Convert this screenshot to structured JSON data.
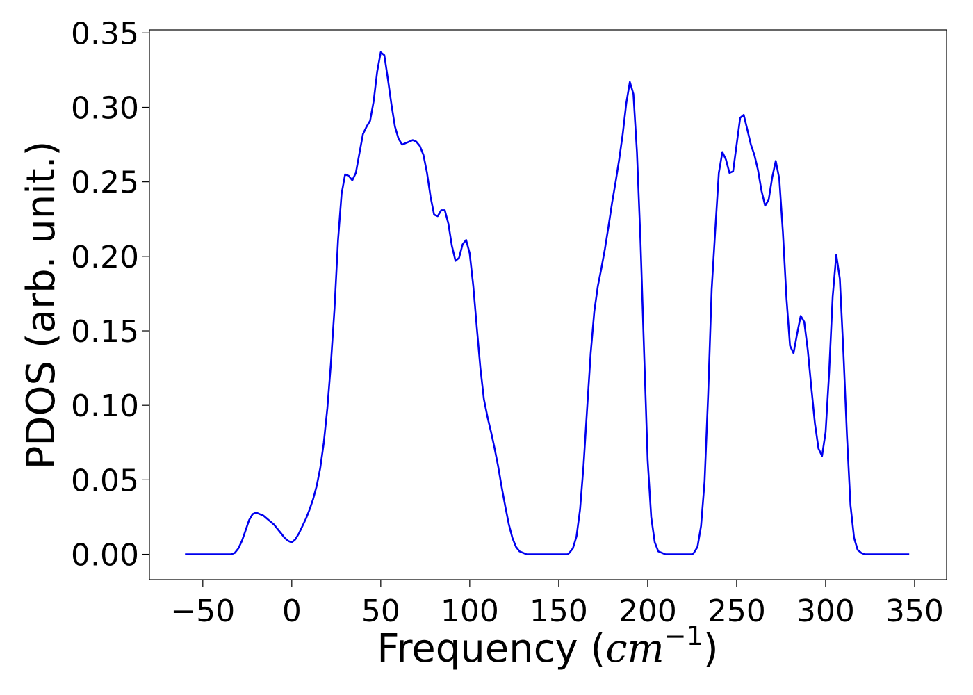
{
  "chart_data": {
    "type": "line",
    "title": "",
    "xlabel_main": "Frequency (",
    "xlabel_unit": "cm",
    "xlabel_exp": "−1",
    "xlabel_close": ")",
    "ylabel": "PDOS (arb. unit.)",
    "xlim": [
      -80,
      368
    ],
    "ylim": [
      -0.017,
      0.352
    ],
    "xticks": [
      -50,
      0,
      50,
      100,
      150,
      200,
      250,
      300,
      350
    ],
    "xtick_labels": [
      "−50",
      "0",
      "50",
      "100",
      "150",
      "200",
      "250",
      "300",
      "350"
    ],
    "yticks": [
      0.0,
      0.05,
      0.1,
      0.15,
      0.2,
      0.25,
      0.3,
      0.35
    ],
    "ytick_labels": [
      "0.00",
      "0.05",
      "0.10",
      "0.15",
      "0.20",
      "0.25",
      "0.30",
      "0.35"
    ],
    "grid": false,
    "legend": "none",
    "series": [
      {
        "color": "#0000ee",
        "points": [
          [
            -60,
            0.0
          ],
          [
            -50,
            0.0
          ],
          [
            -40,
            0.0
          ],
          [
            -34,
            0.0
          ],
          [
            -32,
            0.001
          ],
          [
            -30,
            0.004
          ],
          [
            -28,
            0.009
          ],
          [
            -26,
            0.016
          ],
          [
            -24,
            0.023
          ],
          [
            -22,
            0.027
          ],
          [
            -20,
            0.028
          ],
          [
            -18,
            0.027
          ],
          [
            -16,
            0.026
          ],
          [
            -14,
            0.024
          ],
          [
            -12,
            0.022
          ],
          [
            -10,
            0.02
          ],
          [
            -8,
            0.017
          ],
          [
            -6,
            0.014
          ],
          [
            -4,
            0.011
          ],
          [
            -2,
            0.009
          ],
          [
            0,
            0.008
          ],
          [
            2,
            0.01
          ],
          [
            4,
            0.014
          ],
          [
            6,
            0.019
          ],
          [
            8,
            0.024
          ],
          [
            10,
            0.03
          ],
          [
            12,
            0.037
          ],
          [
            14,
            0.046
          ],
          [
            16,
            0.058
          ],
          [
            18,
            0.075
          ],
          [
            20,
            0.098
          ],
          [
            22,
            0.128
          ],
          [
            24,
            0.165
          ],
          [
            26,
            0.211
          ],
          [
            28,
            0.242
          ],
          [
            30,
            0.255
          ],
          [
            32,
            0.254
          ],
          [
            34,
            0.251
          ],
          [
            36,
            0.256
          ],
          [
            38,
            0.269
          ],
          [
            40,
            0.282
          ],
          [
            42,
            0.287
          ],
          [
            44,
            0.291
          ],
          [
            46,
            0.304
          ],
          [
            48,
            0.324
          ],
          [
            50,
            0.337
          ],
          [
            52,
            0.335
          ],
          [
            54,
            0.319
          ],
          [
            56,
            0.302
          ],
          [
            58,
            0.287
          ],
          [
            60,
            0.279
          ],
          [
            62,
            0.275
          ],
          [
            64,
            0.276
          ],
          [
            66,
            0.277
          ],
          [
            68,
            0.278
          ],
          [
            70,
            0.277
          ],
          [
            72,
            0.274
          ],
          [
            74,
            0.268
          ],
          [
            76,
            0.256
          ],
          [
            78,
            0.24
          ],
          [
            80,
            0.228
          ],
          [
            82,
            0.227
          ],
          [
            84,
            0.231
          ],
          [
            86,
            0.231
          ],
          [
            88,
            0.222
          ],
          [
            90,
            0.207
          ],
          [
            92,
            0.197
          ],
          [
            94,
            0.199
          ],
          [
            96,
            0.208
          ],
          [
            98,
            0.211
          ],
          [
            100,
            0.202
          ],
          [
            102,
            0.18
          ],
          [
            104,
            0.152
          ],
          [
            106,
            0.125
          ],
          [
            108,
            0.104
          ],
          [
            110,
            0.092
          ],
          [
            112,
            0.082
          ],
          [
            114,
            0.071
          ],
          [
            116,
            0.059
          ],
          [
            118,
            0.045
          ],
          [
            120,
            0.032
          ],
          [
            122,
            0.02
          ],
          [
            124,
            0.011
          ],
          [
            126,
            0.005
          ],
          [
            128,
            0.002
          ],
          [
            130,
            0.001
          ],
          [
            132,
            0.0
          ],
          [
            140,
            0.0
          ],
          [
            150,
            0.0
          ],
          [
            155,
            0.0
          ],
          [
            156,
            0.001
          ],
          [
            158,
            0.004
          ],
          [
            160,
            0.012
          ],
          [
            162,
            0.03
          ],
          [
            164,
            0.06
          ],
          [
            166,
            0.098
          ],
          [
            168,
            0.135
          ],
          [
            170,
            0.163
          ],
          [
            172,
            0.18
          ],
          [
            174,
            0.192
          ],
          [
            176,
            0.205
          ],
          [
            178,
            0.22
          ],
          [
            180,
            0.236
          ],
          [
            182,
            0.25
          ],
          [
            184,
            0.265
          ],
          [
            186,
            0.282
          ],
          [
            188,
            0.303
          ],
          [
            190,
            0.317
          ],
          [
            192,
            0.309
          ],
          [
            194,
            0.27
          ],
          [
            196,
            0.21
          ],
          [
            198,
            0.135
          ],
          [
            200,
            0.063
          ],
          [
            202,
            0.025
          ],
          [
            204,
            0.008
          ],
          [
            206,
            0.002
          ],
          [
            208,
            0.001
          ],
          [
            210,
            0.0
          ],
          [
            220,
            0.0
          ],
          [
            225,
            0.0
          ],
          [
            226,
            0.001
          ],
          [
            228,
            0.005
          ],
          [
            230,
            0.019
          ],
          [
            232,
            0.049
          ],
          [
            234,
            0.107
          ],
          [
            236,
            0.178
          ],
          [
            238,
            0.218
          ],
          [
            240,
            0.256
          ],
          [
            242,
            0.27
          ],
          [
            244,
            0.265
          ],
          [
            246,
            0.256
          ],
          [
            248,
            0.257
          ],
          [
            250,
            0.275
          ],
          [
            252,
            0.293
          ],
          [
            254,
            0.295
          ],
          [
            256,
            0.285
          ],
          [
            258,
            0.275
          ],
          [
            260,
            0.268
          ],
          [
            262,
            0.258
          ],
          [
            264,
            0.244
          ],
          [
            266,
            0.234
          ],
          [
            268,
            0.238
          ],
          [
            270,
            0.253
          ],
          [
            272,
            0.264
          ],
          [
            274,
            0.252
          ],
          [
            276,
            0.216
          ],
          [
            278,
            0.172
          ],
          [
            280,
            0.14
          ],
          [
            282,
            0.135
          ],
          [
            284,
            0.148
          ],
          [
            286,
            0.16
          ],
          [
            288,
            0.156
          ],
          [
            290,
            0.137
          ],
          [
            292,
            0.112
          ],
          [
            294,
            0.088
          ],
          [
            296,
            0.071
          ],
          [
            298,
            0.066
          ],
          [
            300,
            0.082
          ],
          [
            302,
            0.122
          ],
          [
            304,
            0.173
          ],
          [
            306,
            0.201
          ],
          [
            308,
            0.185
          ],
          [
            310,
            0.136
          ],
          [
            312,
            0.08
          ],
          [
            314,
            0.033
          ],
          [
            316,
            0.011
          ],
          [
            318,
            0.003
          ],
          [
            320,
            0.001
          ],
          [
            322,
            0.0
          ],
          [
            330,
            0.0
          ],
          [
            340,
            0.0
          ],
          [
            347,
            0.0
          ]
        ]
      }
    ]
  }
}
